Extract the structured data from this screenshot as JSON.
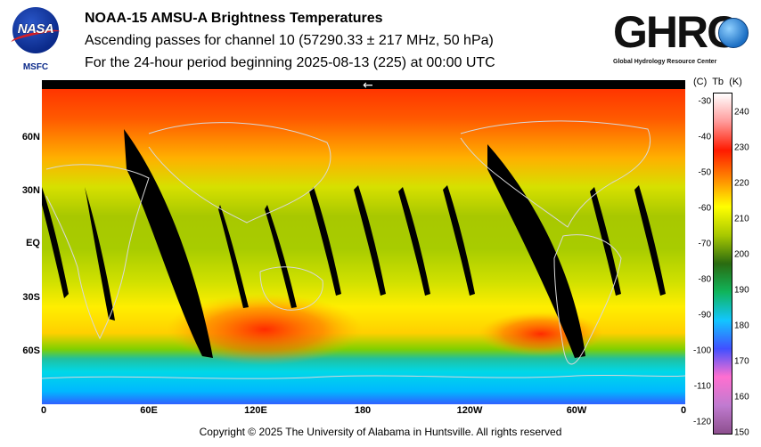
{
  "header": {
    "title": "NOAA-15 AMSU-A Brightness Temperatures",
    "subtitle": "Ascending passes for channel 10 (57290.33 ± 217 MHz, 50 hPa)",
    "period": "For the 24-hour period beginning 2025-08-13 (225) at 00:00 UTC"
  },
  "logos": {
    "nasa_word": "NASA",
    "nasa_sub": "MSFC",
    "ghrc_word": "GHRC",
    "ghrc_sub": "Global Hydrology Resource Center"
  },
  "map": {
    "x_ticks": [
      "0",
      "60E",
      "120E",
      "180",
      "120W",
      "60W",
      "0"
    ],
    "y_ticks": [
      "60N",
      "30N",
      "EQ",
      "30S",
      "60S"
    ],
    "arrow": "←"
  },
  "colorbar": {
    "header_c": "(C)",
    "header_tb": "Tb",
    "header_k": "(K)",
    "celsius_ticks": [
      "-30",
      "-40",
      "-50",
      "-60",
      "-70",
      "-80",
      "-90",
      "-100",
      "-110",
      "-120"
    ],
    "kelvin_ticks": [
      "240",
      "230",
      "220",
      "210",
      "200",
      "190",
      "180",
      "170",
      "160",
      "150"
    ],
    "colors": [
      "#8d4f8e",
      "#c07bd0",
      "#ff6fd0",
      "#4050ff",
      "#12c6ff",
      "#10b45a",
      "#2a6b10",
      "#a8c800",
      "#ffff00",
      "#ff8800",
      "#ff1a00",
      "#ff9a9a",
      "#ffffff"
    ]
  },
  "footer": {
    "copyright": "Copyright © 2025 The University of Alabama in Huntsville.  All rights reserved"
  }
}
